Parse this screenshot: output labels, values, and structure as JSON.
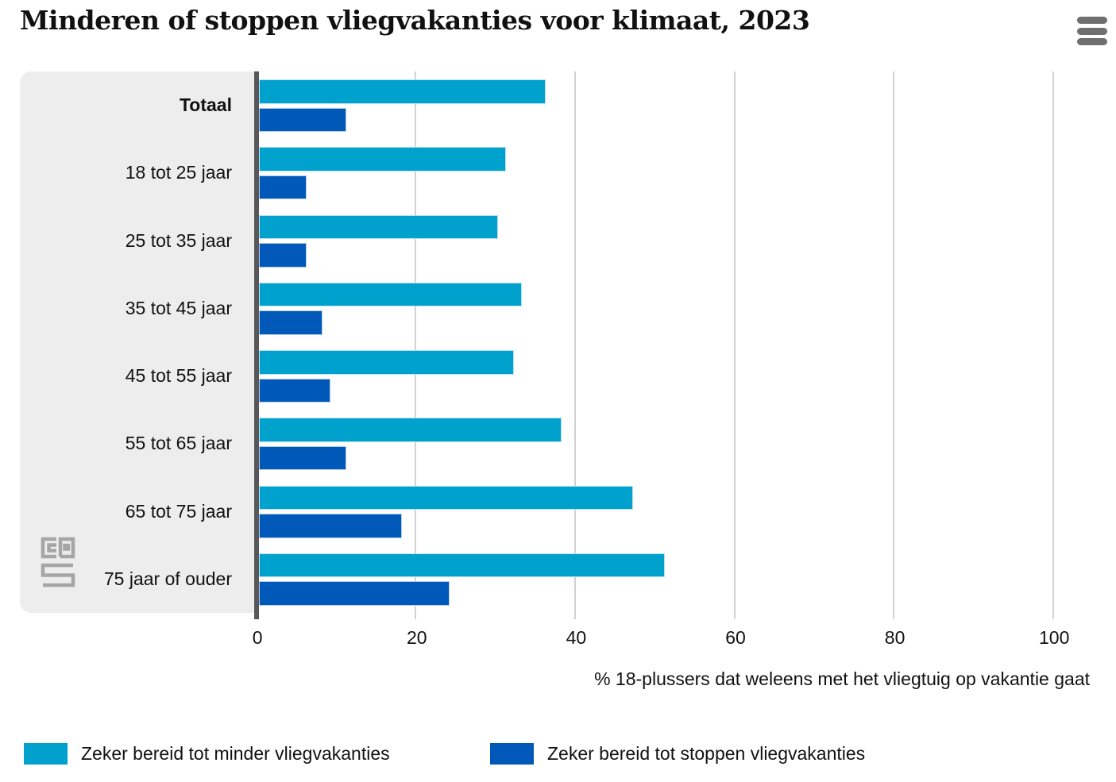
{
  "title": "Minderen of stoppen vliegvakanties voor klimaat, 2023",
  "menu": {
    "icon": "hamburger-menu-icon"
  },
  "branding": {
    "logo": "cbs-logo",
    "logo_color": "#a6a6a6"
  },
  "colors": {
    "series_minder": "#00a1cd",
    "series_stoppen": "#0058b8",
    "category_panel_bg": "#ededed",
    "zero_axis_line": "#58585b",
    "grid_line": "#d2d2d2",
    "text": "#111111",
    "menu_icon": "#6f6f6f"
  },
  "chart_data": {
    "type": "bar",
    "orientation": "horizontal",
    "title": "Minderen of stoppen vliegvakanties voor klimaat, 2023",
    "categories": [
      "Totaal",
      "18 tot 25 jaar",
      "25 tot 35 jaar",
      "35 tot 45 jaar",
      "45 tot 55 jaar",
      "55 tot 65 jaar",
      "65 tot 75 jaar",
      "75 jaar of ouder"
    ],
    "series": [
      {
        "name": "Zeker bereid tot minder vliegvakanties",
        "color": "#00a1cd",
        "values": [
          36,
          31,
          30,
          33,
          32,
          38,
          47,
          51
        ]
      },
      {
        "name": "Zeker bereid tot stoppen vliegvakanties",
        "color": "#0058b8",
        "values": [
          11,
          6,
          6,
          8,
          9,
          11,
          18,
          24
        ]
      }
    ],
    "xlabel": "% 18-plussers dat weleens met het vliegtuig op vakantie gaat",
    "ylabel": "",
    "ticks": [
      0,
      20,
      40,
      60,
      80,
      100
    ],
    "xlim": [
      0,
      105
    ],
    "grid": true,
    "legend_position": "bottom",
    "bold_categories": [
      "Totaal"
    ]
  }
}
